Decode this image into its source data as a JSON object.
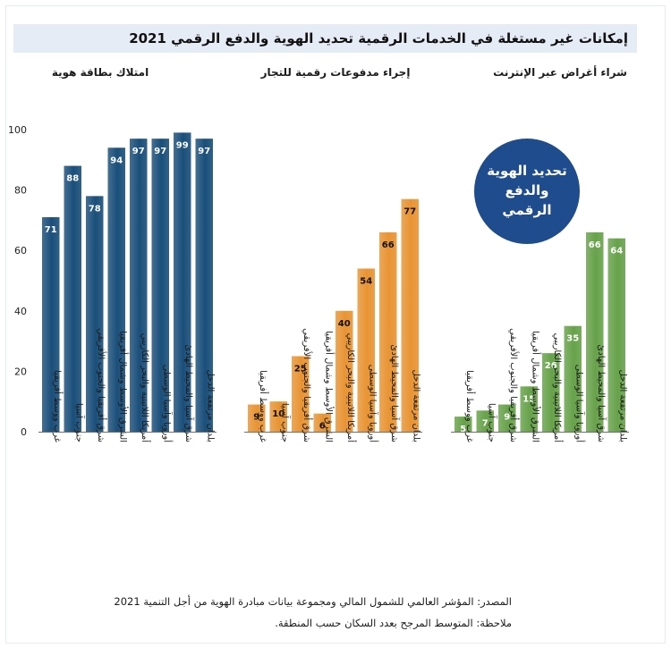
{
  "title": "إمكانات غير مستغلة في الخدمات الرقمية تحديد الهوية والدفع الرقمي 2021",
  "badge_text": "تحديد الهوية\nوالدفع\nالرقمي",
  "footer": {
    "source": "المصدر: المؤشر العالمي للشمول المالي ومجموعة بيانات مبادرة الهوية من أجل التنمية 2021",
    "note": "ملاحظة: المتوسط المرجح بعدد السكان حسب المنطقة."
  },
  "colors": {
    "id_ownership": "#1a4f7a",
    "merchant_payments": "#e89433",
    "online_purchases": "#67a24a",
    "title_band": "#e6ecf6",
    "badge": "#1e4c8c"
  },
  "chart_data": {
    "type": "bar",
    "ylim": [
      0,
      100
    ],
    "yticks": [
      "0",
      "20",
      "40",
      "60",
      "80",
      "100"
    ],
    "grid": false,
    "categories": [
      "غرب ووسط أفريقيا",
      "جنوب آسيا",
      "شرق أفريقيا والجنوب الأفريقي",
      "الشرق الأوسط وشمال أفريقيا",
      "أمريكا اللاتينية والبحر الكاريبي",
      "أوروبا وآسيا الوسطى",
      "شرق آسيا والمحيط الهادئ",
      "بلدان مرتفعة الدخل"
    ],
    "panels": [
      {
        "title": "امتلاك بطاقة هوية",
        "values": [
          71,
          88,
          78,
          94,
          97,
          97,
          99,
          97
        ],
        "labels": [
          "71",
          "88",
          "78",
          "94",
          "97",
          "97",
          "99",
          "97"
        ]
      },
      {
        "title": "إجراء مدفوعات رقمية للتجار",
        "values": [
          9,
          10,
          25,
          6,
          40,
          54,
          66,
          77
        ],
        "labels": [
          "9",
          "10",
          "25",
          "6",
          "40",
          "54",
          "66",
          "77"
        ]
      },
      {
        "title": "شراء أغراض عبر الإنترنت",
        "values": [
          5,
          7,
          9,
          15,
          26,
          35,
          66,
          64
        ],
        "labels": [
          "5",
          "7",
          "9",
          "15",
          "26",
          "35",
          "66",
          "64"
        ]
      }
    ]
  }
}
